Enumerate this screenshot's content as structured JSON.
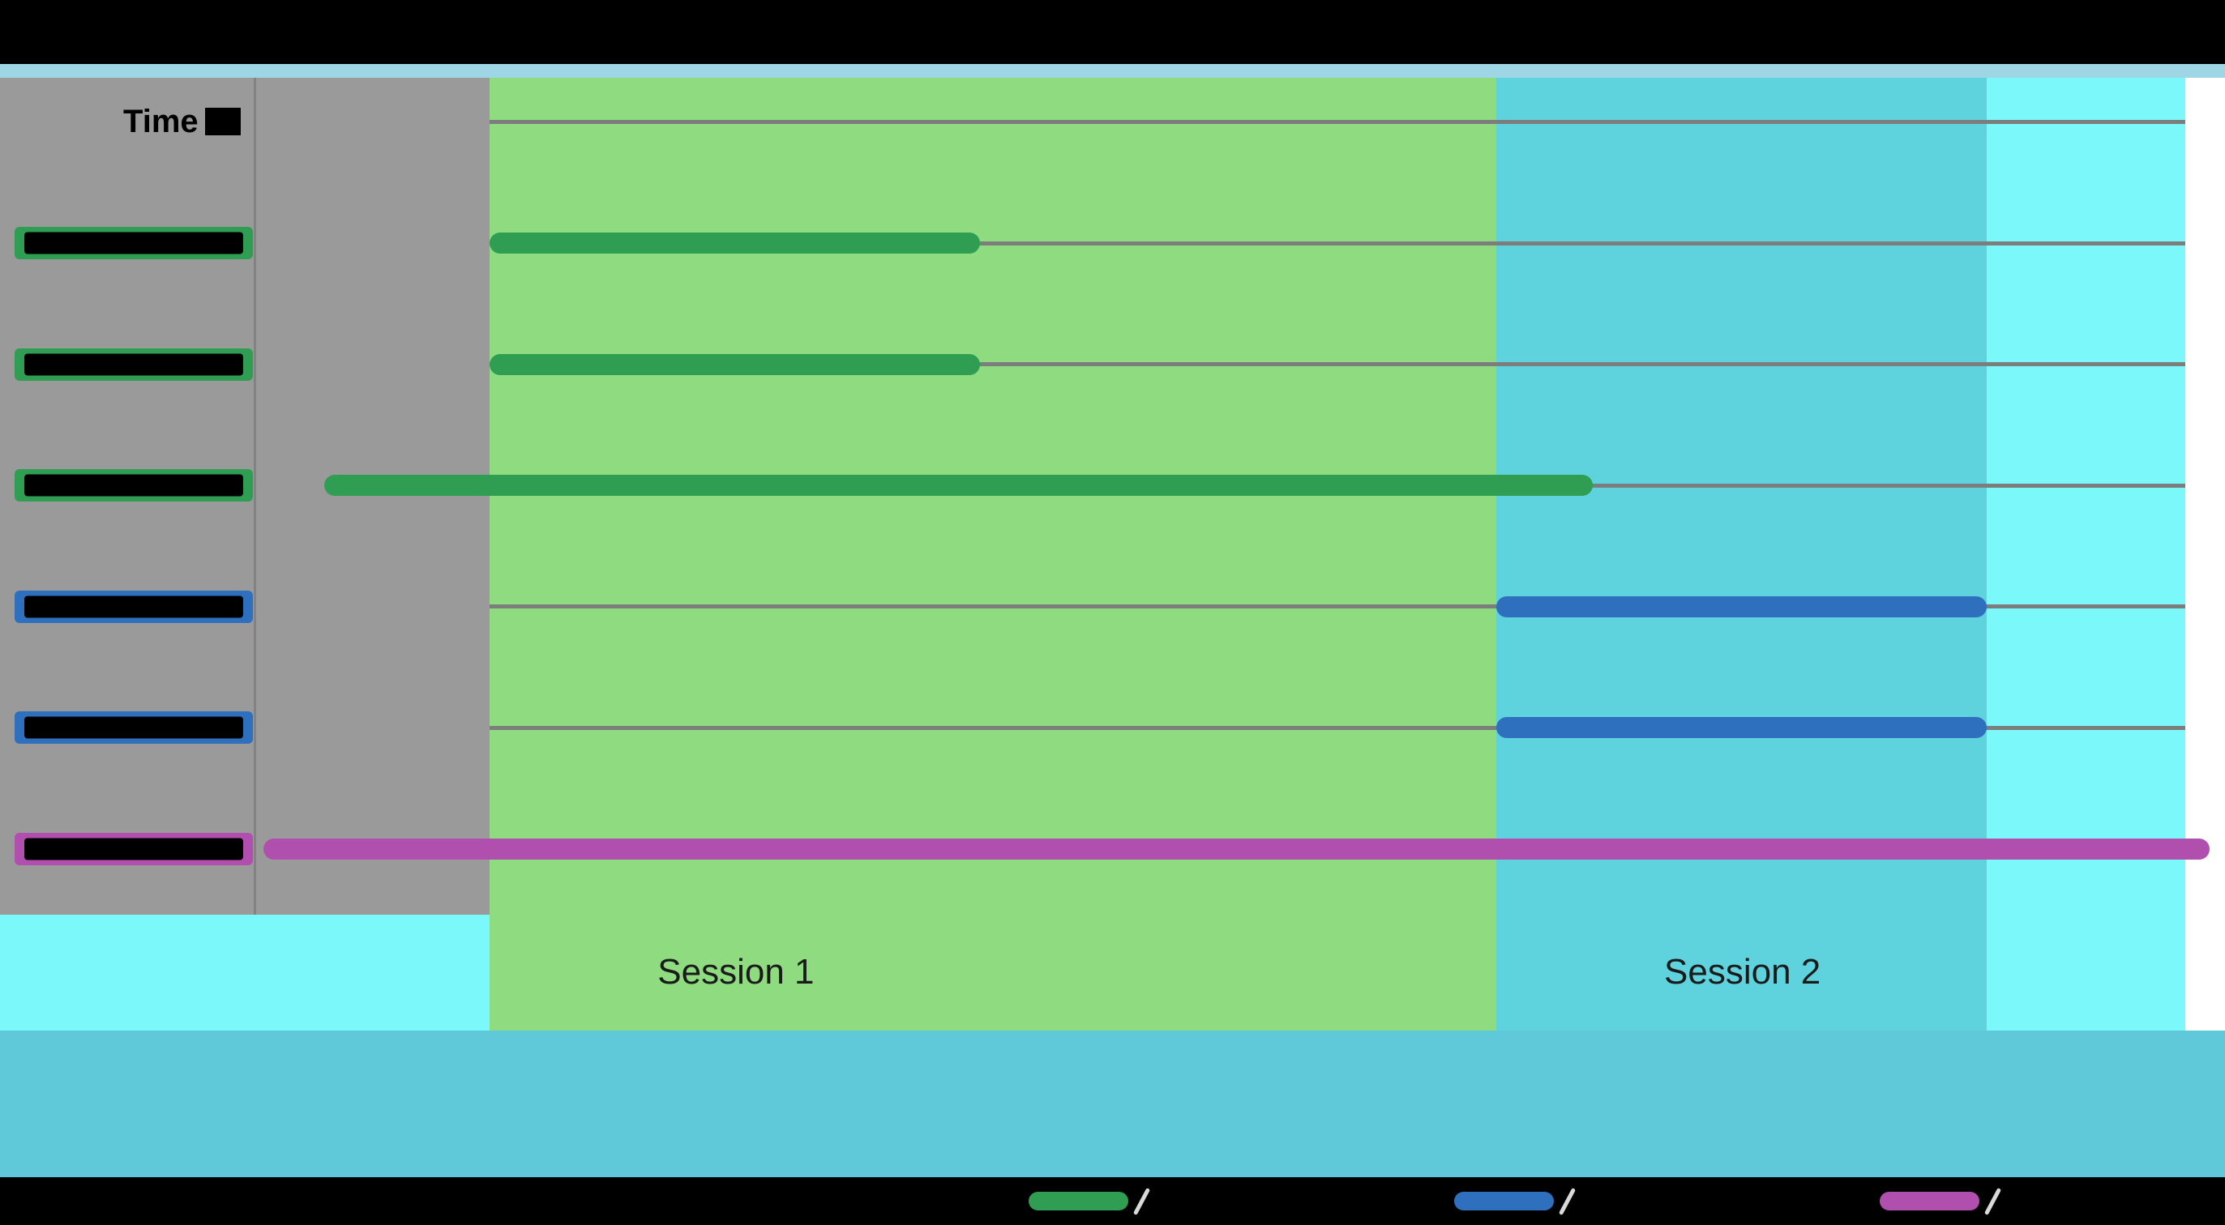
{
  "figure": {
    "time_header": "Time",
    "palette": {
      "letterbox": "#000000",
      "top_strip": "#9fd6e6",
      "left_panel": "#9a9a9a",
      "under_panel_cyan": "#7bf8f9",
      "footer_band": "#5fc9da",
      "gridline": "#7d7d7d",
      "panel_divider": "rgba(0,0,0,0.15)",
      "session_label_text": "#1a1a1a",
      "legend_slash": "#d9d9d9",
      "redaction": "#000000"
    }
  },
  "chart_data": {
    "type": "timeline",
    "x_axis": {
      "label": "Time",
      "min": 0,
      "max": 100,
      "tick_labels": []
    },
    "bands": [
      {
        "name": "pre-session",
        "label": "",
        "start": 0,
        "end": 11.9,
        "color": "#9a9a9a"
      },
      {
        "name": "session-1",
        "label": "Session 1",
        "start": 11.9,
        "end": 63.0,
        "color": "#8edc7f",
        "label_x": 24.4
      },
      {
        "name": "session-2",
        "label": "Session 2",
        "start": 63.0,
        "end": 87.9,
        "color": "#5ed3de",
        "label_x": 75.5
      },
      {
        "name": "post-session",
        "label": "",
        "start": 87.9,
        "end": 98.0,
        "color": "#7bf8f9"
      },
      {
        "name": "right-margin",
        "label": "",
        "start": 98.0,
        "end": 100.0,
        "color": "#ffffff"
      }
    ],
    "rows": [
      {
        "label": "",
        "label_redacted": true,
        "color": "#2f9e52",
        "bar": {
          "start": 11.9,
          "end": 36.8
        }
      },
      {
        "label": "",
        "label_redacted": true,
        "color": "#2f9e52",
        "bar": {
          "start": 11.9,
          "end": 36.8
        }
      },
      {
        "label": "",
        "label_redacted": true,
        "color": "#2f9e52",
        "bar": {
          "start": 3.5,
          "end": 67.9
        }
      },
      {
        "label": "",
        "label_redacted": true,
        "color": "#2e6fbe",
        "bar": {
          "start": 63.0,
          "end": 87.9
        }
      },
      {
        "label": "",
        "label_redacted": true,
        "color": "#2e6fbe",
        "bar": {
          "start": 63.0,
          "end": 87.9
        }
      },
      {
        "label": "",
        "label_redacted": true,
        "color": "#b04fae",
        "bar": {
          "start": 0.4,
          "end": 99.2
        }
      }
    ],
    "legend": [
      {
        "label": "",
        "label_redacted": true,
        "color": "#2f9e52"
      },
      {
        "label": "",
        "label_redacted": true,
        "color": "#2e6fbe"
      },
      {
        "label": "",
        "label_redacted": true,
        "color": "#b04fae"
      }
    ]
  }
}
